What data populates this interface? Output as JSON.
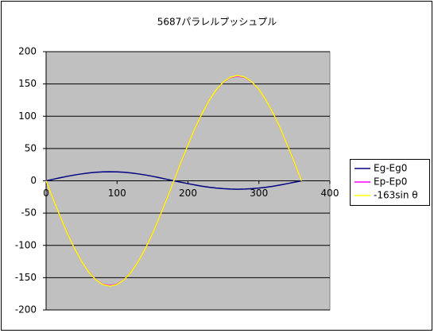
{
  "chart_data": {
    "type": "line",
    "title": "5687パラレルプッシュプル",
    "x": [
      0,
      10,
      20,
      30,
      40,
      50,
      60,
      70,
      80,
      90,
      100,
      110,
      120,
      130,
      140,
      150,
      160,
      170,
      180,
      190,
      200,
      210,
      220,
      230,
      240,
      250,
      260,
      270,
      280,
      290,
      300,
      310,
      320,
      330,
      340,
      350,
      360
    ],
    "series": [
      {
        "name": "Eg-Eg0",
        "color": "#000080",
        "values": [
          0,
          2.4,
          4.8,
          7,
          9,
          10.7,
          12.1,
          13.2,
          13.8,
          14,
          13.8,
          13.2,
          12.1,
          10.7,
          9,
          7,
          4.8,
          2.4,
          0,
          -2.2,
          -4.4,
          -6.5,
          -8.4,
          -10,
          -11.3,
          -12.2,
          -12.8,
          -13,
          -12.8,
          -12.2,
          -11.3,
          -10,
          -8.4,
          -6.5,
          -4.4,
          -2.2,
          0
        ]
      },
      {
        "name": "Ep-Ep0",
        "color": "#ff00ff",
        "values": [
          0,
          -28,
          -56,
          -81,
          -105,
          -125,
          -141,
          -153,
          -160,
          -162,
          -160,
          -153,
          -141,
          -125,
          -105,
          -81,
          -56,
          -28,
          0,
          28,
          56,
          81,
          105,
          125,
          141,
          153,
          160,
          162,
          160,
          153,
          141,
          125,
          105,
          81,
          56,
          28,
          0
        ]
      },
      {
        "name": "-163sin θ",
        "color": "#ffff00",
        "values": [
          0,
          -28.3,
          -55.7,
          -81.5,
          -104.8,
          -124.9,
          -141.2,
          -153.2,
          -160.5,
          -163,
          -160.5,
          -153.2,
          -141.2,
          -124.9,
          -104.8,
          -81.5,
          -55.7,
          -28.3,
          0,
          28.3,
          55.7,
          81.5,
          104.8,
          124.9,
          141.2,
          153.2,
          160.5,
          163,
          160.5,
          153.2,
          141.2,
          124.9,
          104.8,
          81.5,
          55.7,
          28.3,
          0
        ]
      }
    ],
    "xlim": [
      0,
      400
    ],
    "xticks": [
      0,
      100,
      200,
      300,
      400
    ],
    "ylim": [
      -200,
      200
    ],
    "yticks": [
      -200,
      -150,
      -100,
      -50,
      0,
      50,
      100,
      150,
      200
    ],
    "grid": true,
    "legend": "right"
  }
}
